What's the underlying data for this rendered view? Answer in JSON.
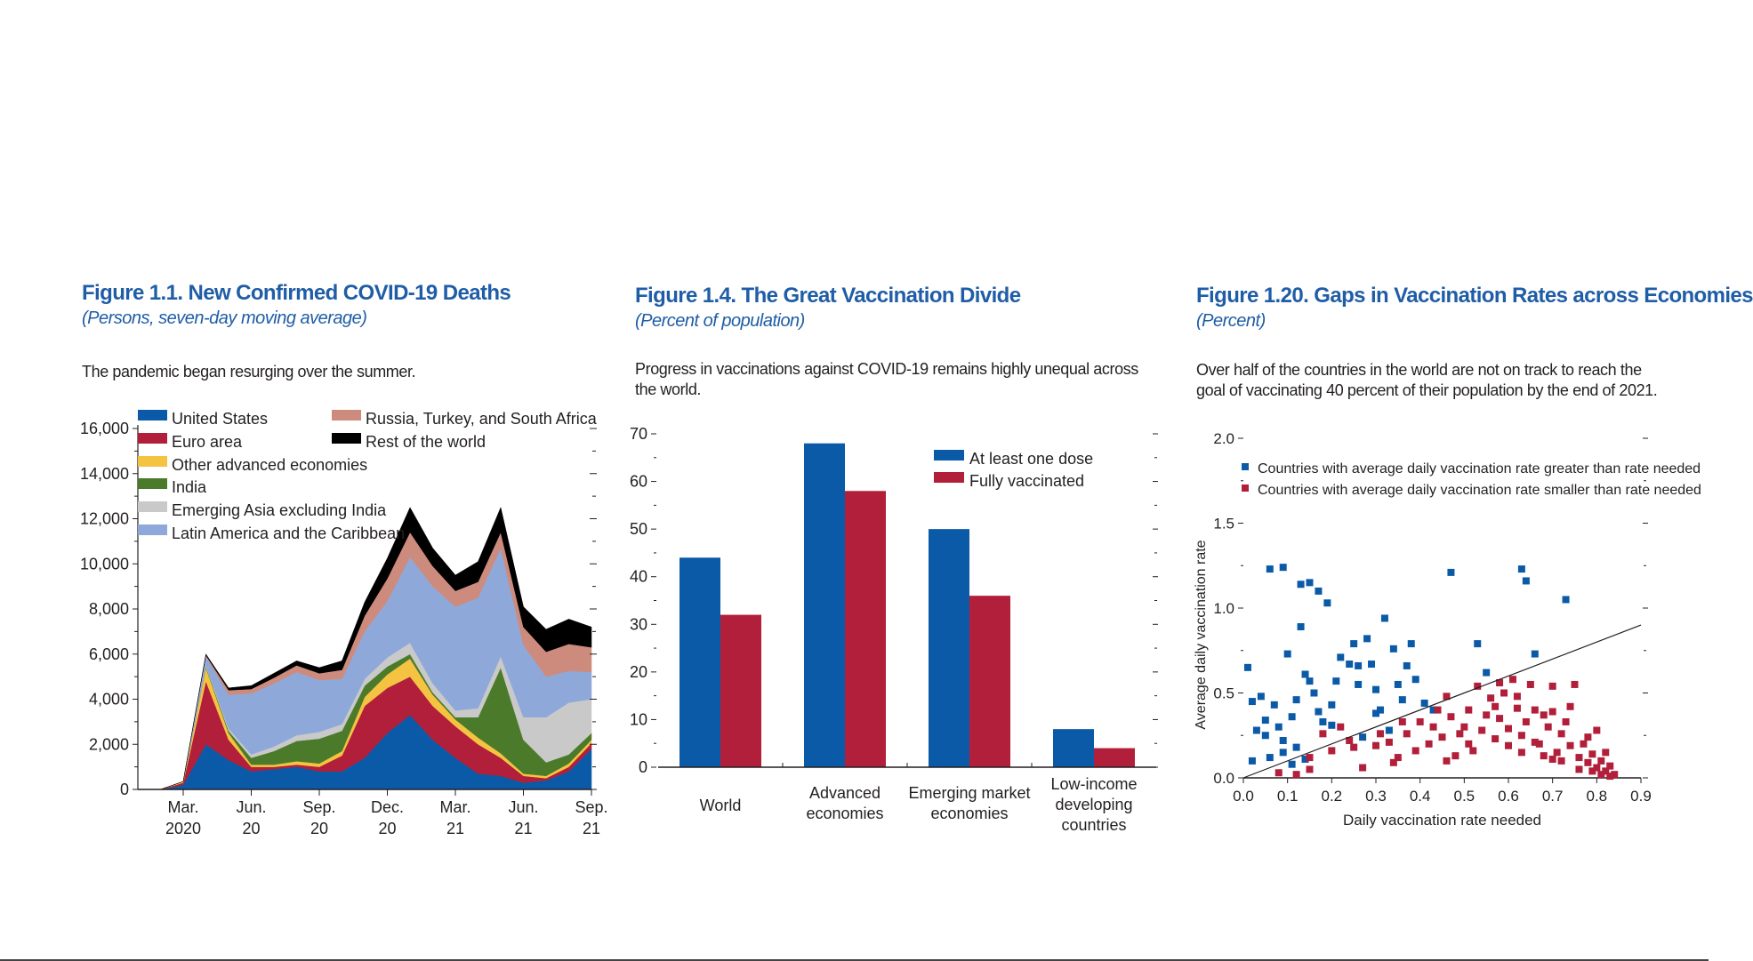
{
  "figures": [
    {
      "title": "Figure 1.1.  New Confirmed COVID-19 Deaths",
      "subtitle": "(Persons, seven-day moving average)",
      "note": "The pandemic began resurging over the summer."
    },
    {
      "title": "Figure 1.4.  The Great Vaccination Divide",
      "subtitle": "(Percent of population)",
      "note": "Progress in vaccinations against COVID-19 remains highly unequal across the world."
    },
    {
      "title": "Figure 1.20.  Gaps in Vaccination Rates across Economies",
      "subtitle": "(Percent)",
      "note": "Over half of the countries in the world are not on track to reach the goal of vaccinating 40 percent of their population by the end of 2021."
    }
  ],
  "chart_data": [
    {
      "type": "area",
      "stacked": true,
      "title": "Figure 1.1.  New Confirmed COVID-19 Deaths",
      "subtitle": "(Persons, seven-day moving average)",
      "ylim": [
        0,
        16000
      ],
      "yticks": [
        0,
        2000,
        4000,
        6000,
        8000,
        10000,
        12000,
        14000,
        16000
      ],
      "ytick_labels": [
        "0",
        "2,000",
        "4,000",
        "6,000",
        "8,000",
        "10,000",
        "12,000",
        "14,000",
        "16,000"
      ],
      "x_index_range": [
        0,
        20
      ],
      "xtick_positions": [
        2,
        5,
        8,
        11,
        14,
        17,
        20
      ],
      "xtick_labels": [
        [
          "Mar.",
          "2020"
        ],
        [
          "Jun.",
          "20"
        ],
        [
          "Sep.",
          "20"
        ],
        [
          "Dec.",
          "20"
        ],
        [
          "Mar.",
          "21"
        ],
        [
          "Jun.",
          "21"
        ],
        [
          "Sep.",
          "21"
        ]
      ],
      "x": [
        "2020-01",
        "2020-02",
        "2020-03",
        "2020-04",
        "2020-05",
        "2020-06",
        "2020-07",
        "2020-08",
        "2020-09",
        "2020-10",
        "2020-11",
        "2020-12",
        "2021-01",
        "2021-02",
        "2021-03",
        "2021-04",
        "2021-05",
        "2021-06",
        "2021-07",
        "2021-08",
        "2021-09"
      ],
      "legend_position": "top-left",
      "series": [
        {
          "name": "United States",
          "color": "#0b5aa7",
          "values": [
            0,
            0,
            200,
            2000,
            1300,
            800,
            900,
            1000,
            800,
            800,
            1400,
            2500,
            3300,
            2200,
            1400,
            700,
            600,
            300,
            400,
            800,
            1800
          ]
        },
        {
          "name": "Euro area",
          "color": "#b11f3a",
          "values": [
            0,
            0,
            100,
            2800,
            900,
            200,
            100,
            100,
            200,
            700,
            2300,
            2000,
            1700,
            1500,
            1400,
            1300,
            800,
            300,
            100,
            200,
            250
          ]
        },
        {
          "name": "Other advanced economies",
          "color": "#f5c342",
          "values": [
            0,
            0,
            50,
            600,
            300,
            100,
            100,
            150,
            150,
            200,
            400,
            600,
            800,
            500,
            300,
            300,
            200,
            100,
            100,
            150,
            150
          ]
        },
        {
          "name": "India",
          "color": "#4b7b2a",
          "values": [
            0,
            0,
            0,
            50,
            100,
            300,
            600,
            900,
            1100,
            900,
            500,
            350,
            200,
            100,
            100,
            900,
            3800,
            1500,
            600,
            400,
            300
          ]
        },
        {
          "name": "Emerging Asia excluding India",
          "color": "#c9c9c9",
          "values": [
            0,
            0,
            0,
            50,
            100,
            150,
            200,
            250,
            300,
            300,
            300,
            400,
            500,
            400,
            300,
            400,
            500,
            1000,
            2000,
            2300,
            1500
          ]
        },
        {
          "name": "Latin America and the Caribbean",
          "color": "#8ea9d9",
          "values": [
            0,
            0,
            0,
            400,
            1500,
            2700,
            2800,
            2800,
            2300,
            2000,
            2100,
            2500,
            3800,
            4300,
            4600,
            4900,
            4800,
            3200,
            1800,
            1400,
            1200
          ]
        },
        {
          "name": "Russia, Turkey, and South Africa",
          "color": "#cd8b7e",
          "values": [
            0,
            0,
            0,
            50,
            200,
            200,
            250,
            300,
            300,
            400,
            700,
            1000,
            1100,
            900,
            700,
            700,
            700,
            800,
            1100,
            1200,
            1100
          ]
        },
        {
          "name": "Rest of the world",
          "color": "#000000",
          "values": [
            0,
            0,
            0,
            50,
            100,
            150,
            200,
            200,
            250,
            400,
            600,
            900,
            1100,
            800,
            700,
            900,
            1100,
            900,
            1000,
            1100,
            900
          ]
        }
      ]
    },
    {
      "type": "bar",
      "title": "Figure 1.4.  The Great Vaccination Divide",
      "subtitle": "(Percent of population)",
      "categories": [
        [
          "World"
        ],
        [
          "Advanced",
          "economies"
        ],
        [
          "Emerging market",
          "economies"
        ],
        [
          "Low-income",
          "developing",
          "countries"
        ]
      ],
      "ylim": [
        0,
        70
      ],
      "yticks": [
        0,
        10,
        20,
        30,
        40,
        50,
        60,
        70
      ],
      "legend_position": "top-right",
      "series": [
        {
          "name": "At least one dose",
          "color": "#0b5aa7",
          "values": [
            44,
            68,
            50,
            8
          ]
        },
        {
          "name": "Fully vaccinated",
          "color": "#b11f3a",
          "values": [
            32,
            58,
            36,
            4
          ]
        }
      ]
    },
    {
      "type": "scatter",
      "title": "Figure 1.20.  Gaps in Vaccination Rates across Economies",
      "subtitle": "(Percent)",
      "xlabel": "Daily vaccination rate needed",
      "ylabel": "Average daily vaccination rate",
      "xlim": [
        0,
        0.9
      ],
      "ylim": [
        0,
        2.0
      ],
      "xticks": [
        0.0,
        0.1,
        0.2,
        0.3,
        0.4,
        0.5,
        0.6,
        0.7,
        0.8,
        0.9
      ],
      "xtick_labels": [
        "0.0",
        "0.1",
        "0.2",
        "0.3",
        "0.4",
        "0.5",
        "0.6",
        "0.7",
        "0.8",
        "0.9"
      ],
      "yticks": [
        0.0,
        0.5,
        1.0,
        1.5,
        2.0
      ],
      "ytick_labels": [
        "0.0",
        "0.5",
        "1.0",
        "1.5",
        "2.0"
      ],
      "line": {
        "x": [
          0.0,
          0.9
        ],
        "y": [
          0.0,
          0.9
        ]
      },
      "legend_position": "top",
      "series": [
        {
          "name": "Countries with average daily vaccination rate greater than rate needed",
          "color": "#0b5aa7",
          "points": [
            [
              0.06,
              1.23
            ],
            [
              0.09,
              1.24
            ],
            [
              0.13,
              1.14
            ],
            [
              0.15,
              1.15
            ],
            [
              0.17,
              1.1
            ],
            [
              0.19,
              1.03
            ],
            [
              0.13,
              0.89
            ],
            [
              0.01,
              0.65
            ],
            [
              0.02,
              0.45
            ],
            [
              0.04,
              0.48
            ],
            [
              0.05,
              0.34
            ],
            [
              0.07,
              0.43
            ],
            [
              0.03,
              0.28
            ],
            [
              0.05,
              0.25
            ],
            [
              0.08,
              0.3
            ],
            [
              0.09,
              0.22
            ],
            [
              0.11,
              0.36
            ],
            [
              0.12,
              0.46
            ],
            [
              0.1,
              0.73
            ],
            [
              0.14,
              0.61
            ],
            [
              0.15,
              0.57
            ],
            [
              0.16,
              0.5
            ],
            [
              0.17,
              0.39
            ],
            [
              0.18,
              0.33
            ],
            [
              0.2,
              0.43
            ],
            [
              0.21,
              0.57
            ],
            [
              0.22,
              0.71
            ],
            [
              0.24,
              0.67
            ],
            [
              0.25,
              0.79
            ],
            [
              0.26,
              0.66
            ],
            [
              0.28,
              0.82
            ],
            [
              0.29,
              0.67
            ],
            [
              0.3,
              0.52
            ],
            [
              0.32,
              0.94
            ],
            [
              0.34,
              0.76
            ],
            [
              0.35,
              0.55
            ],
            [
              0.36,
              0.46
            ],
            [
              0.37,
              0.66
            ],
            [
              0.38,
              0.79
            ],
            [
              0.39,
              0.58
            ],
            [
              0.41,
              0.44
            ],
            [
              0.43,
              0.4
            ],
            [
              0.47,
              1.21
            ],
            [
              0.53,
              0.79
            ],
            [
              0.55,
              0.62
            ],
            [
              0.63,
              1.23
            ],
            [
              0.64,
              1.16
            ],
            [
              0.73,
              1.05
            ],
            [
              0.66,
              0.73
            ],
            [
              0.06,
              0.12
            ],
            [
              0.09,
              0.15
            ],
            [
              0.12,
              0.18
            ],
            [
              0.14,
              0.11
            ],
            [
              0.02,
              0.1
            ],
            [
              0.11,
              0.08
            ],
            [
              0.2,
              0.31
            ],
            [
              0.27,
              0.24
            ],
            [
              0.3,
              0.38
            ],
            [
              0.33,
              0.28
            ],
            [
              0.26,
              0.55
            ],
            [
              0.31,
              0.4
            ]
          ]
        },
        {
          "name": "Countries with average daily vaccination rate smaller than rate needed",
          "color": "#b11f3a",
          "points": [
            [
              0.08,
              0.03
            ],
            [
              0.15,
              0.12
            ],
            [
              0.2,
              0.16
            ],
            [
              0.22,
              0.3
            ],
            [
              0.25,
              0.18
            ],
            [
              0.27,
              0.06
            ],
            [
              0.3,
              0.19
            ],
            [
              0.33,
              0.21
            ],
            [
              0.35,
              0.12
            ],
            [
              0.37,
              0.26
            ],
            [
              0.4,
              0.33
            ],
            [
              0.42,
              0.2
            ],
            [
              0.44,
              0.4
            ],
            [
              0.45,
              0.24
            ],
            [
              0.47,
              0.36
            ],
            [
              0.48,
              0.13
            ],
            [
              0.5,
              0.3
            ],
            [
              0.52,
              0.16
            ],
            [
              0.53,
              0.54
            ],
            [
              0.55,
              0.37
            ],
            [
              0.56,
              0.47
            ],
            [
              0.57,
              0.42
            ],
            [
              0.58,
              0.35
            ],
            [
              0.59,
              0.5
            ],
            [
              0.6,
              0.29
            ],
            [
              0.61,
              0.58
            ],
            [
              0.62,
              0.41
            ],
            [
              0.63,
              0.25
            ],
            [
              0.64,
              0.33
            ],
            [
              0.65,
              0.55
            ],
            [
              0.66,
              0.4
            ],
            [
              0.67,
              0.2
            ],
            [
              0.68,
              0.37
            ],
            [
              0.69,
              0.3
            ],
            [
              0.7,
              0.54
            ],
            [
              0.71,
              0.15
            ],
            [
              0.72,
              0.26
            ],
            [
              0.73,
              0.33
            ],
            [
              0.74,
              0.19
            ],
            [
              0.75,
              0.55
            ],
            [
              0.76,
              0.12
            ],
            [
              0.77,
              0.2
            ],
            [
              0.78,
              0.09
            ],
            [
              0.78,
              0.24
            ],
            [
              0.79,
              0.14
            ],
            [
              0.8,
              0.06
            ],
            [
              0.8,
              0.28
            ],
            [
              0.81,
              0.1
            ],
            [
              0.82,
              0.04
            ],
            [
              0.82,
              0.15
            ],
            [
              0.83,
              0.07
            ],
            [
              0.83,
              0.01
            ],
            [
              0.84,
              0.02
            ],
            [
              0.81,
              0.02
            ],
            [
              0.79,
              0.04
            ],
            [
              0.76,
              0.05
            ],
            [
              0.72,
              0.1
            ],
            [
              0.7,
              0.11
            ],
            [
              0.68,
              0.13
            ],
            [
              0.66,
              0.21
            ],
            [
              0.63,
              0.15
            ],
            [
              0.6,
              0.19
            ],
            [
              0.57,
              0.23
            ],
            [
              0.54,
              0.28
            ],
            [
              0.51,
              0.2
            ],
            [
              0.49,
              0.26
            ],
            [
              0.46,
              0.1
            ],
            [
              0.43,
              0.3
            ],
            [
              0.39,
              0.16
            ],
            [
              0.36,
              0.33
            ],
            [
              0.34,
              0.09
            ],
            [
              0.31,
              0.26
            ],
            [
              0.24,
              0.22
            ],
            [
              0.18,
              0.26
            ],
            [
              0.15,
              0.05
            ],
            [
              0.12,
              0.02
            ],
            [
              0.46,
              0.48
            ],
            [
              0.51,
              0.4
            ],
            [
              0.58,
              0.56
            ],
            [
              0.74,
              0.42
            ],
            [
              0.62,
              0.48
            ],
            [
              0.7,
              0.39
            ]
          ]
        }
      ]
    }
  ]
}
